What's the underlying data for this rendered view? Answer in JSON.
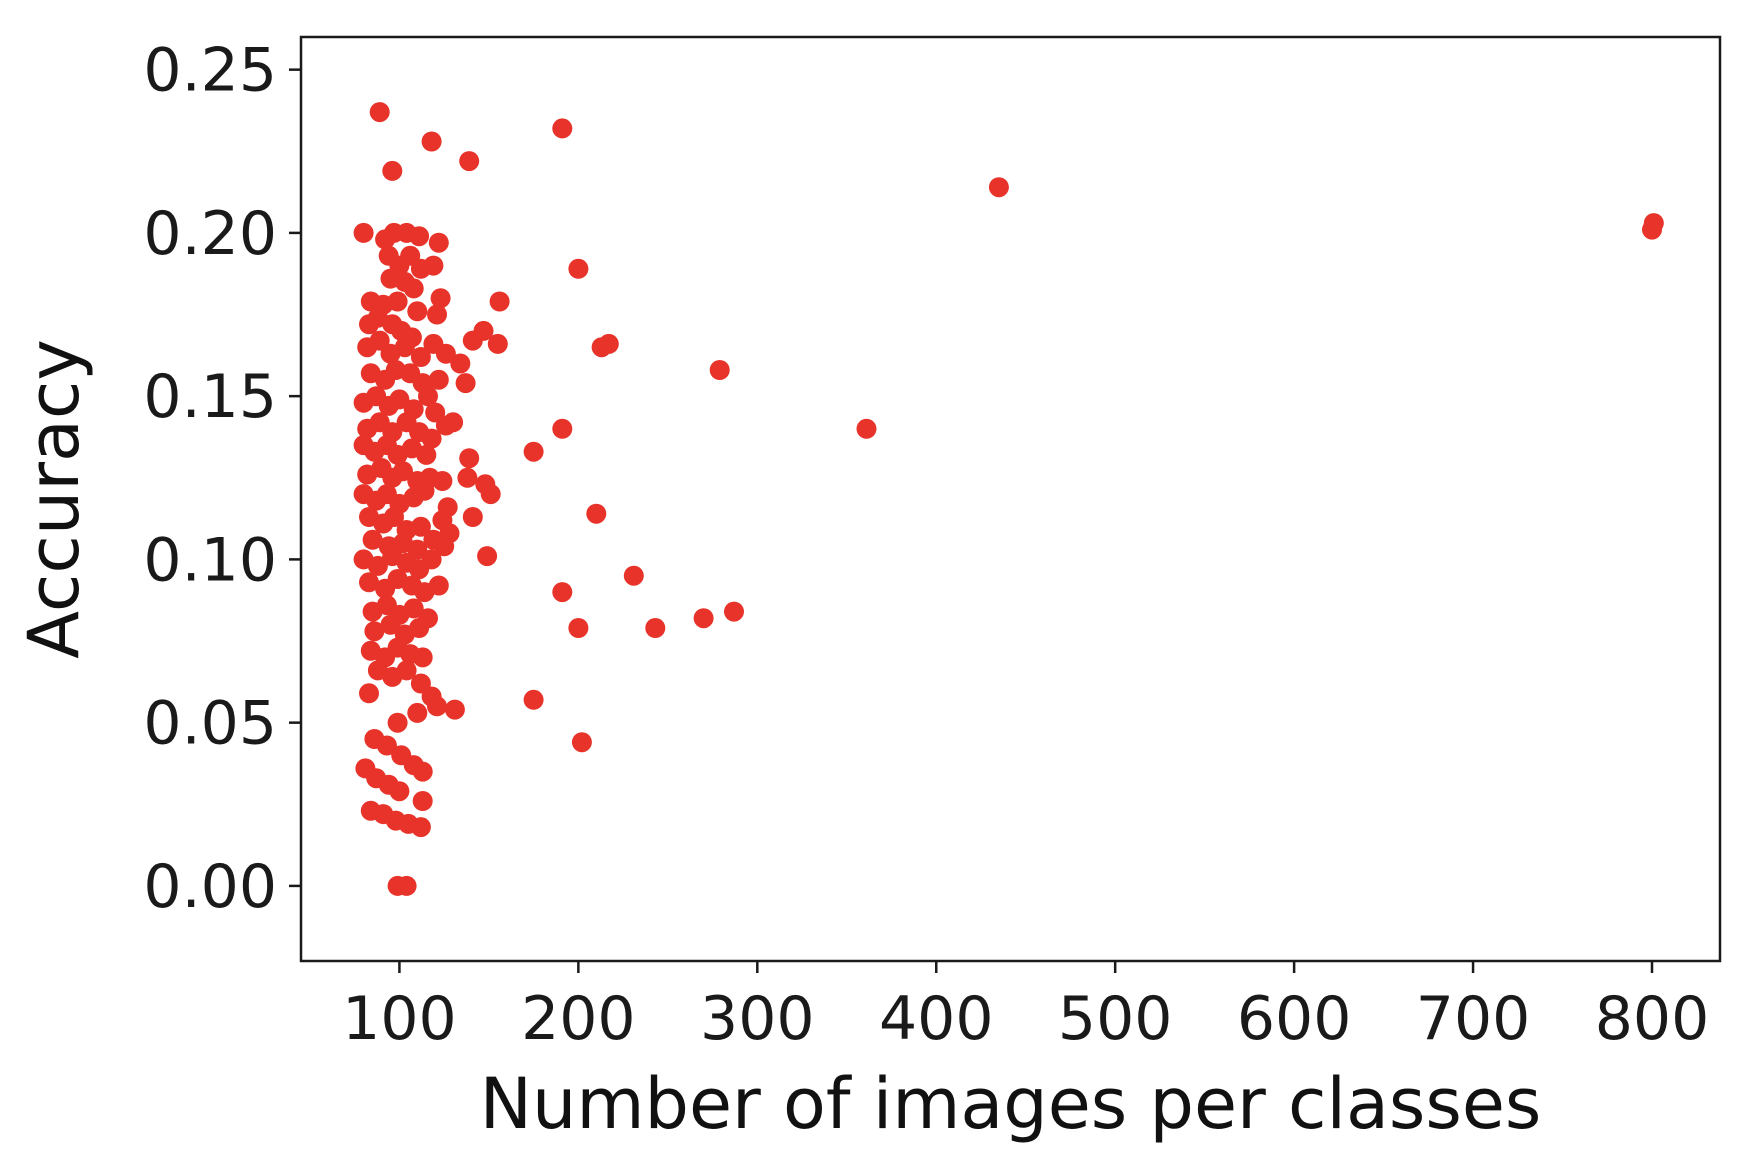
{
  "chart_data": {
    "type": "scatter",
    "title": "",
    "xlabel": "Number of images per classes",
    "ylabel": "Accuracy",
    "xlim": [
      45,
      838
    ],
    "ylim": [
      -0.023,
      0.26
    ],
    "xticks": [
      100,
      200,
      300,
      400,
      500,
      600,
      700,
      800
    ],
    "xtick_labels": [
      "100",
      "200",
      "300",
      "400",
      "500",
      "600",
      "700",
      "800"
    ],
    "yticks": [
      0.0,
      0.05,
      0.1,
      0.15,
      0.2,
      0.25
    ],
    "ytick_labels": [
      "0.00",
      "0.05",
      "0.10",
      "0.15",
      "0.20",
      "0.25"
    ],
    "grid": false,
    "legend": "none",
    "marker_color": "#e8332a",
    "points": [
      [
        89,
        0.237
      ],
      [
        96,
        0.219
      ],
      [
        118,
        0.228
      ],
      [
        139,
        0.222
      ],
      [
        191,
        0.232
      ],
      [
        435,
        0.214
      ],
      [
        800,
        0.201
      ],
      [
        801,
        0.203
      ],
      [
        80,
        0.2
      ],
      [
        92,
        0.198
      ],
      [
        97,
        0.2
      ],
      [
        104,
        0.2
      ],
      [
        111,
        0.199
      ],
      [
        122,
        0.197
      ],
      [
        94,
        0.193
      ],
      [
        106,
        0.193
      ],
      [
        100,
        0.19
      ],
      [
        112,
        0.189
      ],
      [
        119,
        0.19
      ],
      [
        200,
        0.189
      ],
      [
        95,
        0.186
      ],
      [
        103,
        0.185
      ],
      [
        108,
        0.183
      ],
      [
        84,
        0.179
      ],
      [
        91,
        0.178
      ],
      [
        99,
        0.179
      ],
      [
        110,
        0.176
      ],
      [
        123,
        0.18
      ],
      [
        156,
        0.179
      ],
      [
        83,
        0.172
      ],
      [
        88,
        0.174
      ],
      [
        96,
        0.172
      ],
      [
        101,
        0.17
      ],
      [
        107,
        0.168
      ],
      [
        121,
        0.175
      ],
      [
        147,
        0.17
      ],
      [
        82,
        0.165
      ],
      [
        89,
        0.167
      ],
      [
        95,
        0.163
      ],
      [
        103,
        0.165
      ],
      [
        112,
        0.162
      ],
      [
        119,
        0.166
      ],
      [
        126,
        0.163
      ],
      [
        141,
        0.167
      ],
      [
        155,
        0.166
      ],
      [
        213,
        0.165
      ],
      [
        217,
        0.166
      ],
      [
        84,
        0.157
      ],
      [
        92,
        0.155
      ],
      [
        98,
        0.158
      ],
      [
        106,
        0.157
      ],
      [
        113,
        0.154
      ],
      [
        122,
        0.155
      ],
      [
        134,
        0.16
      ],
      [
        137,
        0.154
      ],
      [
        279,
        0.158
      ],
      [
        80,
        0.148
      ],
      [
        87,
        0.15
      ],
      [
        94,
        0.147
      ],
      [
        100,
        0.149
      ],
      [
        108,
        0.146
      ],
      [
        116,
        0.15
      ],
      [
        120,
        0.145
      ],
      [
        82,
        0.14
      ],
      [
        89,
        0.142
      ],
      [
        96,
        0.139
      ],
      [
        104,
        0.142
      ],
      [
        111,
        0.139
      ],
      [
        118,
        0.137
      ],
      [
        126,
        0.141
      ],
      [
        130,
        0.142
      ],
      [
        191,
        0.14
      ],
      [
        361,
        0.14
      ],
      [
        80,
        0.135
      ],
      [
        86,
        0.133
      ],
      [
        93,
        0.135
      ],
      [
        99,
        0.132
      ],
      [
        107,
        0.134
      ],
      [
        115,
        0.132
      ],
      [
        139,
        0.131
      ],
      [
        175,
        0.133
      ],
      [
        82,
        0.126
      ],
      [
        90,
        0.128
      ],
      [
        96,
        0.125
      ],
      [
        102,
        0.127
      ],
      [
        110,
        0.124
      ],
      [
        117,
        0.125
      ],
      [
        124,
        0.124
      ],
      [
        138,
        0.125
      ],
      [
        148,
        0.123
      ],
      [
        80,
        0.12
      ],
      [
        87,
        0.118
      ],
      [
        93,
        0.12
      ],
      [
        100,
        0.117
      ],
      [
        108,
        0.119
      ],
      [
        114,
        0.121
      ],
      [
        127,
        0.116
      ],
      [
        151,
        0.12
      ],
      [
        83,
        0.113
      ],
      [
        91,
        0.111
      ],
      [
        97,
        0.113
      ],
      [
        104,
        0.109
      ],
      [
        112,
        0.11
      ],
      [
        124,
        0.112
      ],
      [
        128,
        0.108
      ],
      [
        141,
        0.113
      ],
      [
        210,
        0.114
      ],
      [
        85,
        0.106
      ],
      [
        94,
        0.104
      ],
      [
        102,
        0.105
      ],
      [
        110,
        0.103
      ],
      [
        119,
        0.106
      ],
      [
        125,
        0.104
      ],
      [
        80,
        0.1
      ],
      [
        88,
        0.098
      ],
      [
        96,
        0.101
      ],
      [
        104,
        0.099
      ],
      [
        111,
        0.097
      ],
      [
        118,
        0.1
      ],
      [
        149,
        0.101
      ],
      [
        83,
        0.093
      ],
      [
        92,
        0.091
      ],
      [
        99,
        0.094
      ],
      [
        107,
        0.092
      ],
      [
        114,
        0.09
      ],
      [
        122,
        0.092
      ],
      [
        191,
        0.09
      ],
      [
        231,
        0.095
      ],
      [
        85,
        0.084
      ],
      [
        93,
        0.086
      ],
      [
        100,
        0.083
      ],
      [
        108,
        0.085
      ],
      [
        116,
        0.082
      ],
      [
        287,
        0.084
      ],
      [
        86,
        0.078
      ],
      [
        95,
        0.08
      ],
      [
        103,
        0.077
      ],
      [
        111,
        0.079
      ],
      [
        200,
        0.079
      ],
      [
        243,
        0.079
      ],
      [
        270,
        0.082
      ],
      [
        84,
        0.072
      ],
      [
        92,
        0.07
      ],
      [
        99,
        0.073
      ],
      [
        106,
        0.071
      ],
      [
        113,
        0.07
      ],
      [
        88,
        0.066
      ],
      [
        96,
        0.064
      ],
      [
        104,
        0.066
      ],
      [
        112,
        0.062
      ],
      [
        83,
        0.059
      ],
      [
        118,
        0.058
      ],
      [
        121,
        0.055
      ],
      [
        110,
        0.053
      ],
      [
        131,
        0.054
      ],
      [
        175,
        0.057
      ],
      [
        99,
        0.05
      ],
      [
        86,
        0.045
      ],
      [
        93,
        0.043
      ],
      [
        202,
        0.044
      ],
      [
        101,
        0.04
      ],
      [
        108,
        0.037
      ],
      [
        113,
        0.035
      ],
      [
        81,
        0.036
      ],
      [
        87,
        0.033
      ],
      [
        94,
        0.031
      ],
      [
        100,
        0.029
      ],
      [
        113,
        0.026
      ],
      [
        84,
        0.023
      ],
      [
        91,
        0.022
      ],
      [
        98,
        0.02
      ],
      [
        105,
        0.019
      ],
      [
        112,
        0.018
      ],
      [
        99,
        0.0
      ],
      [
        104,
        0.0
      ]
    ]
  }
}
